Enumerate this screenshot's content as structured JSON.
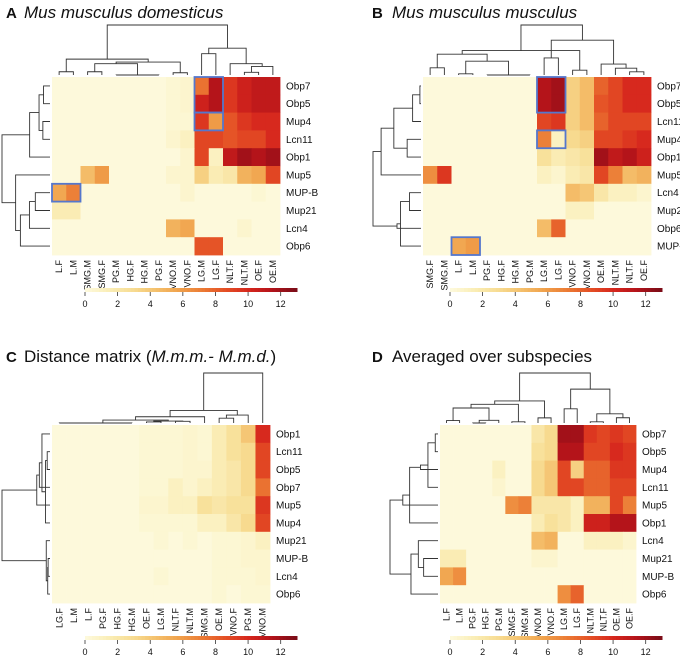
{
  "colors": {
    "scale": [
      "#fdf9db",
      "#faedb5",
      "#f7dc92",
      "#f4c06c",
      "#f0a14b",
      "#eb7a34",
      "#e44f25",
      "#d6261d",
      "#b3131a",
      "#7d0d18"
    ],
    "highlight": "#5577cc"
  },
  "chart_data": [
    {
      "type": "heatmap",
      "letter": "A",
      "title": "Mus musculus domesticus",
      "title_parts": [
        {
          "text": "Mus musculus domesticus",
          "italic": true
        }
      ],
      "rows": [
        "Obp7",
        "Obp5",
        "Mup4",
        "Lcn11",
        "Obp1",
        "Mup5",
        "MUP-B",
        "Mup21",
        "Lcn4",
        "Obp6"
      ],
      "cols": [
        "L.F",
        "L.M",
        "SMG.M",
        "SMG.F",
        "PG.M",
        "HG.F",
        "HG.M",
        "PG.F",
        "VNO.M",
        "VNO.F",
        "LG.M",
        "LG.F",
        "NLT.F",
        "NLT.M",
        "OE.F",
        "OE.M"
      ],
      "values": [
        [
          0,
          0,
          0,
          0,
          0,
          0,
          0,
          0,
          0.3,
          0.5,
          7.5,
          11.5,
          9.5,
          10.5,
          11,
          11
        ],
        [
          0,
          0,
          0,
          0,
          0,
          0,
          0,
          0,
          0.3,
          0.5,
          10.5,
          11.5,
          9.5,
          10.5,
          11,
          11
        ],
        [
          0,
          0,
          0,
          0,
          0,
          0,
          0,
          0,
          0.3,
          0.3,
          9.5,
          6,
          8.5,
          9.5,
          10,
          10
        ],
        [
          0,
          0,
          0,
          0,
          0,
          0,
          0,
          0,
          0.5,
          1,
          9,
          9,
          8.5,
          9,
          9,
          10
        ],
        [
          0,
          0,
          0,
          0,
          0,
          0,
          0,
          0,
          0,
          0.5,
          9,
          1,
          11,
          12,
          11.5,
          12
        ],
        [
          0,
          0,
          4.5,
          6,
          0,
          0,
          0,
          0,
          0.5,
          0.5,
          3.5,
          1.5,
          2,
          5,
          5.5,
          9
        ],
        [
          5.5,
          7,
          0,
          0,
          0,
          0,
          0,
          0,
          0,
          0.5,
          0,
          0,
          0,
          0,
          0.3,
          0
        ],
        [
          1.5,
          1.5,
          0,
          0,
          0,
          0,
          0,
          0,
          0,
          0,
          0,
          0,
          0,
          0,
          0,
          0
        ],
        [
          0,
          0,
          0,
          0,
          0,
          0,
          0,
          0,
          5,
          5.5,
          0,
          0,
          0,
          0.5,
          0,
          0
        ],
        [
          0,
          0,
          0,
          0,
          0,
          0,
          0,
          0,
          0,
          0,
          8.5,
          8.5,
          0,
          0,
          0,
          0
        ]
      ],
      "highlights": [
        [
          0,
          10,
          2,
          2
        ],
        [
          2,
          10,
          1,
          2
        ],
        [
          6,
          0,
          1,
          2
        ]
      ],
      "colorbar": {
        "ticks": [
          "0",
          "2",
          "4",
          "6",
          "8",
          "10",
          "12"
        ],
        "range": [
          0,
          13
        ]
      }
    },
    {
      "type": "heatmap",
      "letter": "B",
      "title": "Mus musculus musculus",
      "title_parts": [
        {
          "text": "Mus musculus musculus",
          "italic": true
        }
      ],
      "rows": [
        "Obp7",
        "Obp5",
        "Lcn11",
        "Mup4",
        "Obp1",
        "Mup5",
        "Lcn4",
        "Mup21",
        "Obp6",
        "MUP-B"
      ],
      "cols": [
        "SMG.F",
        "SMG.M",
        "L.F",
        "L.M",
        "PG.F",
        "HG.F",
        "HG.M",
        "PG.M",
        "LG.M",
        "LG.F",
        "VNO.F",
        "VNO.M",
        "OE.M",
        "NLT.M",
        "NLT.F",
        "OE.F"
      ],
      "values": [
        [
          0,
          0,
          0,
          0,
          0,
          0,
          0,
          0,
          11.5,
          12,
          3.5,
          4.5,
          8,
          9,
          10,
          10
        ],
        [
          0,
          0,
          0,
          0,
          0,
          0,
          0,
          0,
          11.5,
          12,
          3.5,
          4.5,
          8.5,
          9,
          10,
          10
        ],
        [
          0,
          0,
          0,
          0,
          0,
          0,
          0,
          0,
          9,
          9.5,
          3.5,
          4.5,
          8,
          9,
          9,
          9
        ],
        [
          0,
          0,
          0,
          0,
          0,
          0,
          0,
          0,
          7,
          1,
          3,
          3.5,
          9,
          9,
          9.5,
          10
        ],
        [
          0,
          0,
          0,
          0,
          0,
          0,
          0,
          0,
          2.5,
          1.5,
          2,
          2.5,
          12,
          11,
          11.5,
          10.5
        ],
        [
          6.5,
          9.5,
          0,
          0,
          0,
          0,
          0,
          0,
          1,
          0.5,
          1.5,
          2,
          9,
          7,
          4.5,
          5
        ],
        [
          0,
          0,
          0,
          0,
          0,
          0,
          0,
          0,
          0,
          0,
          4.5,
          4,
          2,
          1,
          1,
          0.5
        ],
        [
          0,
          0,
          0,
          0,
          0,
          0,
          0,
          0,
          0,
          0,
          1,
          1,
          0,
          0,
          0,
          0
        ],
        [
          0,
          0,
          0,
          0,
          0,
          0,
          0,
          0,
          4.5,
          8,
          0,
          0,
          0,
          0,
          0,
          0
        ],
        [
          0,
          0,
          5.5,
          6,
          0,
          0,
          0,
          0,
          0,
          0,
          0,
          0,
          0,
          0,
          0,
          0
        ]
      ],
      "highlights": [
        [
          0,
          8,
          2,
          2
        ],
        [
          3,
          8,
          1,
          2
        ],
        [
          9,
          2,
          1,
          2
        ]
      ],
      "colorbar": {
        "ticks": [
          "0",
          "2",
          "4",
          "6",
          "8",
          "10",
          "12"
        ],
        "range": [
          0,
          13
        ]
      }
    },
    {
      "type": "heatmap",
      "letter": "C",
      "title": "Distance matrix (M.m.m.- M.m.d.)",
      "title_parts": [
        {
          "text": "Distance matrix (",
          "italic": false
        },
        {
          "text": "M.m.m.- M.m.d.",
          "italic": true
        },
        {
          "text": ")",
          "italic": false
        }
      ],
      "rows": [
        "Obp1",
        "Lcn11",
        "Obp5",
        "Obp7",
        "Mup5",
        "Mup4",
        "Mup21",
        "MUP-B",
        "Lcn4",
        "Obp6"
      ],
      "cols": [
        "LG.F",
        "L.M",
        "L.F",
        "PG.F",
        "HG.F",
        "HG.M",
        "OE.F",
        "LG.M",
        "NLT.F",
        "NLT.M",
        "SMG.M",
        "OE.M",
        "VNO.F",
        "PG.M",
        "VNO.M"
      ],
      "values": [
        [
          0,
          0,
          0,
          0,
          0,
          0,
          0.3,
          0.3,
          0.3,
          0.5,
          0.3,
          1.5,
          2.5,
          4,
          10
        ],
        [
          0,
          0,
          0,
          0,
          0,
          0,
          0.3,
          0.3,
          0.3,
          0.5,
          0.3,
          1.5,
          2.5,
          3,
          9
        ],
        [
          0,
          0,
          0,
          0,
          0,
          0,
          0.3,
          0.3,
          0.3,
          0.5,
          0.5,
          1.5,
          2,
          3,
          9
        ],
        [
          0,
          0,
          0,
          0,
          0,
          0,
          0.3,
          0.3,
          1,
          0.5,
          1,
          1.5,
          2,
          3,
          7.5
        ],
        [
          0,
          0,
          0,
          0,
          0,
          0,
          0.5,
          0.5,
          1,
          1,
          2.5,
          2,
          2.5,
          2.5,
          9.5
        ],
        [
          0,
          0,
          0,
          0,
          0,
          0,
          0.3,
          0.3,
          0.3,
          0.3,
          1,
          1,
          2,
          3,
          9
        ],
        [
          0,
          0,
          0,
          0,
          0,
          0,
          0,
          0.3,
          0,
          0.3,
          0,
          0.3,
          0.3,
          0.5,
          1
        ],
        [
          0,
          0,
          0,
          0,
          0,
          0,
          0,
          0,
          0,
          0,
          0,
          0.3,
          0.3,
          0.5,
          0.5
        ],
        [
          0,
          0,
          0,
          0,
          0,
          0,
          0,
          0.3,
          0,
          0,
          0,
          0.3,
          0.3,
          0.3,
          0.5
        ],
        [
          0,
          0,
          0,
          0,
          0,
          0,
          0,
          0,
          0,
          0,
          0,
          0.3,
          0,
          0.3,
          0.3
        ]
      ],
      "highlights": [],
      "colorbar": {
        "ticks": [
          "0",
          "2",
          "4",
          "6",
          "8",
          "10",
          "12"
        ],
        "range": [
          0,
          13
        ]
      }
    },
    {
      "type": "heatmap",
      "letter": "D",
      "title": "Averaged over subspecies",
      "title_parts": [
        {
          "text": "Averaged over subspecies",
          "italic": false
        }
      ],
      "rows": [
        "Obp7",
        "Obp5",
        "Mup4",
        "Lcn11",
        "Mup5",
        "Obp1",
        "Lcn4",
        "Mup21",
        "MUP-B",
        "Obp6"
      ],
      "cols": [
        "L.F",
        "L.M",
        "PG.F",
        "HG.F",
        "PG.M",
        "SMG.F",
        "SMG.M",
        "VNO.M",
        "VNO.F",
        "LG.M",
        "LG.F",
        "NLT.M",
        "NLT.F",
        "OE.M",
        "OE.F"
      ],
      "values": [
        [
          0,
          0,
          0,
          0,
          0,
          0,
          0,
          2,
          3,
          12,
          12,
          9.5,
          9,
          9.5,
          9
        ],
        [
          0,
          0,
          0,
          0,
          0,
          0,
          0,
          2.5,
          3,
          11.5,
          11.5,
          9,
          9,
          10,
          9.5
        ],
        [
          0,
          0,
          0,
          0,
          1,
          0,
          0,
          3,
          4,
          9,
          3.5,
          8,
          8,
          9.5,
          9.5
        ],
        [
          0,
          0,
          0,
          0,
          0.5,
          0,
          0,
          3,
          4,
          9,
          9,
          8,
          8,
          9,
          9
        ],
        [
          0,
          0,
          0,
          0,
          0,
          6.5,
          7,
          2,
          2,
          2,
          1,
          5,
          5,
          9,
          7
        ],
        [
          0,
          0,
          0,
          0,
          0,
          0,
          0,
          1.5,
          2.5,
          2,
          1,
          10.5,
          10.5,
          11.5,
          11.5
        ],
        [
          0,
          0,
          0,
          0,
          0,
          0,
          0,
          4.5,
          5,
          0,
          0,
          1,
          1,
          1,
          0.5
        ],
        [
          1.5,
          1.5,
          0,
          0,
          0,
          0,
          0,
          0.5,
          0.5,
          0,
          0,
          0,
          0,
          0,
          0
        ],
        [
          5.5,
          6.5,
          0,
          0,
          0,
          0,
          0,
          0,
          0,
          0,
          0,
          0,
          0,
          0,
          0
        ],
        [
          0,
          0,
          0,
          0,
          0,
          0,
          0,
          0,
          0,
          6.5,
          8,
          0,
          0,
          0,
          0
        ]
      ],
      "highlights": [],
      "colorbar": {
        "ticks": [
          "0",
          "2",
          "4",
          "6",
          "8",
          "10",
          "12"
        ],
        "range": [
          0,
          13
        ]
      }
    }
  ]
}
